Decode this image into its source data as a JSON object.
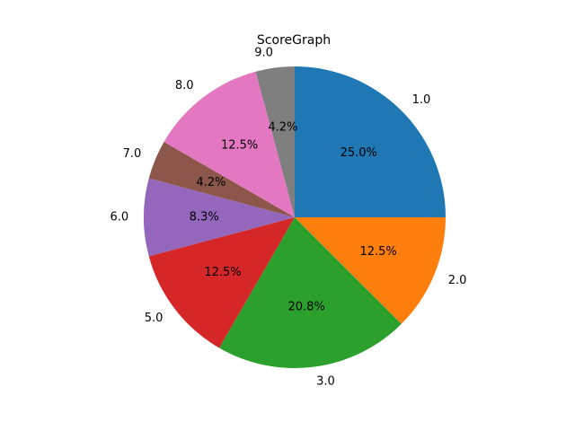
{
  "chart_data": {
    "type": "pie",
    "title": "ScoreGraph",
    "labels": [
      "1.0",
      "2.0",
      "3.0",
      "5.0",
      "6.0",
      "7.0",
      "8.0",
      "9.0"
    ],
    "percentages": [
      "25.0%",
      "12.5%",
      "20.8%",
      "12.5%",
      "8.3%",
      "4.2%",
      "12.5%",
      "4.2%"
    ],
    "values": [
      6,
      3,
      5,
      3,
      2,
      1,
      3,
      1
    ],
    "colors": [
      "#1f77b4",
      "#ff7f0e",
      "#2ca02c",
      "#d62728",
      "#9467bd",
      "#8c564b",
      "#e377c2",
      "#7f7f7f"
    ]
  }
}
